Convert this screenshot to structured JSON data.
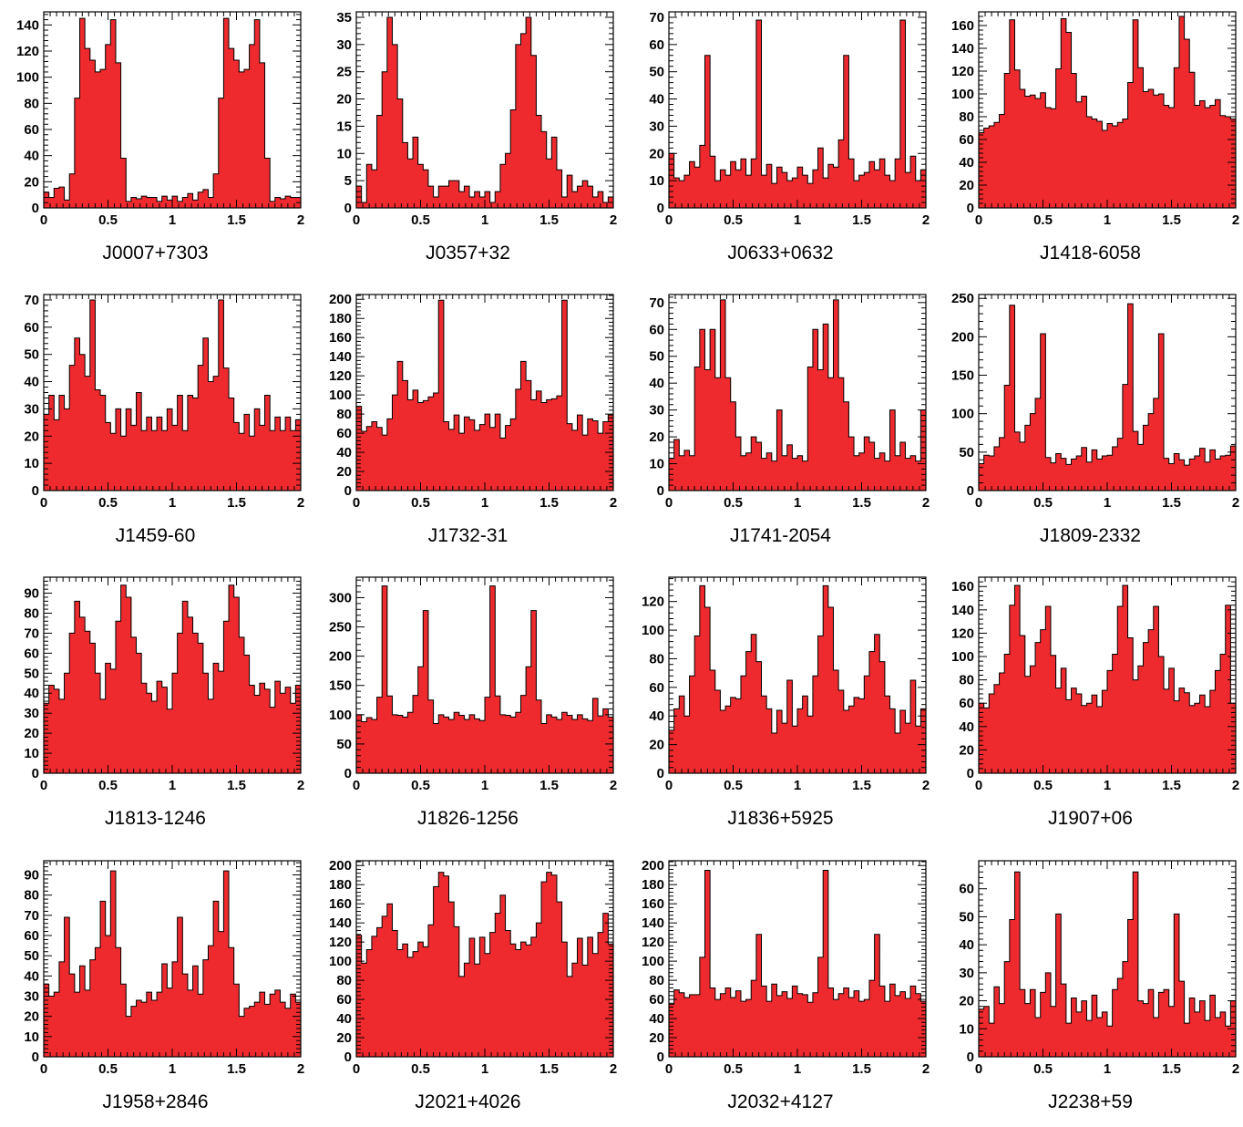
{
  "style": {
    "bar_color": "#ee2a2e",
    "edge_color": "#000000"
  },
  "chart_data": [
    {
      "type": "bar",
      "title": "J0007+7303",
      "xlim": [
        0,
        2
      ],
      "ylim": [
        0,
        150
      ],
      "xticks": [
        "0",
        "0.5",
        "1",
        "1.5",
        "2"
      ],
      "yticks": [
        "0",
        "20",
        "40",
        "60",
        "80",
        "100",
        "120",
        "140"
      ],
      "values": [
        12,
        8,
        15,
        16,
        6,
        26,
        84,
        145,
        122,
        113,
        104,
        106,
        125,
        144,
        111,
        38,
        5,
        8,
        7,
        9,
        8,
        8,
        5,
        9,
        6,
        9,
        5,
        8,
        11,
        6,
        12,
        14,
        8,
        26,
        84,
        145,
        122,
        113,
        104,
        106,
        125,
        144,
        111,
        38,
        5,
        8,
        7,
        9,
        8,
        8
      ]
    },
    {
      "type": "bar",
      "title": "J0357+32",
      "xlim": [
        0,
        2
      ],
      "ylim": [
        0,
        36
      ],
      "xticks": [
        "0",
        "0.5",
        "1",
        "1.5",
        "2"
      ],
      "yticks": [
        "0",
        "5",
        "10",
        "15",
        "20",
        "25",
        "30",
        "35"
      ],
      "values": [
        4,
        1,
        8,
        7,
        17,
        25,
        35,
        30,
        20,
        12,
        9,
        13,
        8,
        7,
        4,
        2,
        4,
        4,
        5,
        5,
        3,
        4,
        2,
        3,
        2,
        3,
        1,
        3,
        8,
        10,
        18,
        30,
        32,
        35,
        28,
        17,
        14,
        9,
        13,
        7,
        2,
        6,
        3,
        4,
        5,
        4,
        2,
        3,
        1,
        2
      ]
    },
    {
      "type": "bar",
      "title": "J0633+0632",
      "xlim": [
        0,
        2
      ],
      "ylim": [
        0,
        72
      ],
      "xticks": [
        "0",
        "0.5",
        "1",
        "1.5",
        "2"
      ],
      "yticks": [
        "0",
        "10",
        "20",
        "30",
        "40",
        "50",
        "60",
        "70"
      ],
      "values": [
        20,
        11,
        10,
        12,
        17,
        15,
        23,
        56,
        19,
        10,
        14,
        12,
        17,
        14,
        18,
        12,
        18,
        69,
        12,
        16,
        9,
        15,
        13,
        10,
        11,
        15,
        12,
        9,
        14,
        22,
        11,
        16,
        15,
        25,
        56,
        18,
        10,
        12,
        13,
        17,
        14,
        18,
        12,
        10,
        18,
        69,
        13,
        19,
        10,
        14
      ]
    },
    {
      "type": "bar",
      "title": "J1418-6058",
      "xlim": [
        0,
        2
      ],
      "ylim": [
        0,
        172
      ],
      "xticks": [
        "0",
        "0.5",
        "1",
        "1.5",
        "2"
      ],
      "yticks": [
        "0",
        "20",
        "40",
        "60",
        "80",
        "100",
        "120",
        "140",
        "160"
      ],
      "values": [
        66,
        70,
        72,
        75,
        82,
        118,
        165,
        121,
        104,
        98,
        99,
        96,
        101,
        88,
        87,
        122,
        166,
        154,
        118,
        93,
        98,
        80,
        78,
        76,
        68,
        74,
        72,
        75,
        78,
        110,
        165,
        123,
        102,
        104,
        99,
        100,
        90,
        88,
        123,
        168,
        148,
        119,
        90,
        94,
        88,
        90,
        95,
        81,
        80,
        78
      ]
    },
    {
      "type": "bar",
      "title": "J1459-60",
      "xlim": [
        0,
        2
      ],
      "ylim": [
        0,
        72
      ],
      "xticks": [
        "0",
        "0.5",
        "1",
        "1.5",
        "2"
      ],
      "yticks": [
        "0",
        "10",
        "20",
        "30",
        "40",
        "50",
        "60",
        "70"
      ],
      "values": [
        28,
        35,
        26,
        35,
        30,
        46,
        56,
        50,
        42,
        70,
        37,
        35,
        25,
        21,
        30,
        20,
        30,
        24,
        36,
        22,
        27,
        22,
        27,
        22,
        30,
        24,
        35,
        22,
        35,
        34,
        46,
        56,
        40,
        42,
        70,
        45,
        34,
        25,
        21,
        28,
        20,
        30,
        24,
        35,
        22,
        27,
        22,
        27,
        22,
        26
      ]
    },
    {
      "type": "bar",
      "title": "J1732-31",
      "xlim": [
        0,
        2
      ],
      "ylim": [
        0,
        205
      ],
      "xticks": [
        "0",
        "0.5",
        "1",
        "1.5",
        "2"
      ],
      "yticks": [
        "0",
        "20",
        "40",
        "60",
        "80",
        "100",
        "120",
        "140",
        "160",
        "180",
        "200"
      ],
      "values": [
        88,
        62,
        67,
        72,
        66,
        58,
        75,
        100,
        135,
        115,
        95,
        105,
        92,
        94,
        98,
        102,
        199,
        72,
        64,
        79,
        60,
        77,
        74,
        63,
        69,
        80,
        66,
        80,
        55,
        68,
        75,
        106,
        135,
        115,
        95,
        104,
        92,
        95,
        96,
        99,
        199,
        70,
        63,
        79,
        58,
        75,
        73,
        60,
        72,
        79
      ]
    },
    {
      "type": "bar",
      "title": "J1741-2054",
      "xlim": [
        0,
        2
      ],
      "ylim": [
        0,
        73
      ],
      "xticks": [
        "0",
        "0.5",
        "1",
        "1.5",
        "2"
      ],
      "yticks": [
        "0",
        "10",
        "20",
        "30",
        "40",
        "50",
        "60",
        "70"
      ],
      "values": [
        12,
        19,
        13,
        15,
        13,
        46,
        60,
        45,
        60,
        42,
        71,
        42,
        33,
        20,
        13,
        14,
        20,
        18,
        12,
        14,
        11,
        30,
        13,
        17,
        12,
        13,
        11,
        46,
        60,
        45,
        62,
        42,
        71,
        42,
        33,
        20,
        13,
        14,
        20,
        18,
        12,
        14,
        11,
        30,
        13,
        18,
        12,
        13,
        11,
        30
      ]
    },
    {
      "type": "bar",
      "title": "J1809-2332",
      "xlim": [
        0,
        2
      ],
      "ylim": [
        0,
        255
      ],
      "xticks": [
        "0",
        "0.5",
        "1",
        "1.5",
        "2"
      ],
      "yticks": [
        "0",
        "50",
        "100",
        "150",
        "200",
        "250"
      ],
      "values": [
        35,
        46,
        45,
        57,
        69,
        137,
        241,
        76,
        63,
        85,
        100,
        120,
        204,
        43,
        36,
        48,
        42,
        34,
        41,
        45,
        56,
        37,
        53,
        41,
        45,
        46,
        57,
        68,
        138,
        243,
        77,
        60,
        85,
        100,
        120,
        204,
        42,
        35,
        48,
        40,
        33,
        41,
        45,
        55,
        37,
        53,
        41,
        45,
        46,
        58
      ]
    },
    {
      "type": "bar",
      "title": "J1813-1246",
      "xlim": [
        0,
        2
      ],
      "ylim": [
        0,
        98
      ],
      "xticks": [
        "0",
        "0.5",
        "1",
        "1.5",
        "2"
      ],
      "yticks": [
        "0",
        "10",
        "20",
        "30",
        "40",
        "50",
        "60",
        "70",
        "80",
        "90"
      ],
      "values": [
        35,
        44,
        42,
        37,
        50,
        70,
        86,
        78,
        71,
        65,
        50,
        37,
        55,
        52,
        76,
        94,
        88,
        68,
        60,
        45,
        40,
        36,
        46,
        43,
        32,
        50,
        70,
        86,
        78,
        70,
        65,
        50,
        37,
        55,
        51,
        76,
        94,
        88,
        68,
        59,
        44,
        39,
        45,
        42,
        33,
        46,
        40,
        43,
        35,
        44
      ]
    },
    {
      "type": "bar",
      "title": "J1826-1256",
      "xlim": [
        0,
        2
      ],
      "ylim": [
        0,
        335
      ],
      "xticks": [
        "0",
        "0.5",
        "1",
        "1.5",
        "2"
      ],
      "yticks": [
        "0",
        "50",
        "100",
        "150",
        "200",
        "250",
        "300"
      ],
      "values": [
        100,
        88,
        95,
        92,
        130,
        320,
        132,
        100,
        99,
        96,
        104,
        133,
        182,
        278,
        125,
        85,
        100,
        96,
        92,
        104,
        99,
        92,
        100,
        93,
        90,
        130,
        320,
        132,
        100,
        99,
        96,
        104,
        133,
        182,
        278,
        125,
        85,
        100,
        96,
        92,
        104,
        99,
        92,
        100,
        93,
        90,
        128,
        98,
        110,
        96
      ]
    },
    {
      "type": "bar",
      "title": "J1836+5925",
      "xlim": [
        0,
        2
      ],
      "ylim": [
        0,
        137
      ],
      "xticks": [
        "0",
        "0.5",
        "1",
        "1.5",
        "2"
      ],
      "yticks": [
        "0",
        "20",
        "40",
        "60",
        "80",
        "100",
        "120"
      ],
      "values": [
        30,
        45,
        54,
        40,
        68,
        96,
        131,
        116,
        72,
        58,
        44,
        47,
        53,
        52,
        68,
        85,
        97,
        78,
        54,
        45,
        28,
        44,
        35,
        65,
        33,
        45,
        54,
        40,
        68,
        96,
        131,
        116,
        72,
        58,
        44,
        47,
        53,
        52,
        68,
        85,
        97,
        78,
        54,
        45,
        28,
        44,
        35,
        65,
        33,
        45
      ]
    },
    {
      "type": "bar",
      "title": "J1907+06",
      "xlim": [
        0,
        2
      ],
      "ylim": [
        0,
        168
      ],
      "xticks": [
        "0",
        "0.5",
        "1",
        "1.5",
        "2"
      ],
      "yticks": [
        "0",
        "20",
        "40",
        "60",
        "80",
        "100",
        "120",
        "140",
        "160"
      ],
      "values": [
        60,
        56,
        68,
        76,
        86,
        102,
        144,
        161,
        118,
        83,
        92,
        112,
        123,
        143,
        101,
        73,
        90,
        63,
        73,
        68,
        58,
        60,
        67,
        57,
        71,
        88,
        102,
        143,
        161,
        116,
        80,
        92,
        112,
        123,
        143,
        100,
        72,
        90,
        62,
        73,
        69,
        58,
        60,
        67,
        57,
        71,
        88,
        102,
        144,
        60
      ]
    },
    {
      "type": "bar",
      "title": "J1958+2846",
      "xlim": [
        0,
        2
      ],
      "ylim": [
        0,
        97
      ],
      "xticks": [
        "0",
        "0.5",
        "1",
        "1.5",
        "2"
      ],
      "yticks": [
        "0",
        "10",
        "20",
        "30",
        "40",
        "50",
        "60",
        "70",
        "80",
        "90"
      ],
      "values": [
        36,
        30,
        32,
        47,
        69,
        41,
        32,
        45,
        33,
        48,
        54,
        77,
        60,
        92,
        54,
        36,
        20,
        25,
        28,
        27,
        32,
        28,
        32,
        46,
        34,
        47,
        69,
        41,
        33,
        45,
        31,
        48,
        55,
        77,
        62,
        92,
        54,
        36,
        20,
        24,
        25,
        27,
        32,
        26,
        31,
        33,
        27,
        24,
        31,
        27
      ]
    },
    {
      "type": "bar",
      "title": "J2021+4026",
      "xlim": [
        0,
        2
      ],
      "ylim": [
        0,
        205
      ],
      "xticks": [
        "0",
        "0.5",
        "1",
        "1.5",
        "2"
      ],
      "yticks": [
        "0",
        "20",
        "40",
        "60",
        "80",
        "100",
        "120",
        "140",
        "160",
        "180",
        "200"
      ],
      "values": [
        127,
        98,
        112,
        126,
        135,
        147,
        160,
        132,
        112,
        118,
        104,
        110,
        120,
        115,
        138,
        178,
        193,
        189,
        162,
        136,
        84,
        98,
        124,
        97,
        125,
        108,
        130,
        150,
        169,
        132,
        118,
        112,
        120,
        117,
        125,
        140,
        183,
        193,
        190,
        162,
        120,
        84,
        98,
        124,
        96,
        125,
        108,
        130,
        150,
        118
      ]
    },
    {
      "type": "bar",
      "title": "J2032+4127",
      "xlim": [
        0,
        2
      ],
      "ylim": [
        0,
        205
      ],
      "xticks": [
        "0",
        "0.5",
        "1",
        "1.5",
        "2"
      ],
      "yticks": [
        "0",
        "20",
        "40",
        "60",
        "80",
        "100",
        "120",
        "140",
        "160",
        "180",
        "200"
      ],
      "values": [
        55,
        70,
        67,
        62,
        65,
        65,
        104,
        195,
        72,
        60,
        66,
        72,
        62,
        69,
        58,
        60,
        80,
        128,
        74,
        58,
        76,
        64,
        68,
        61,
        74,
        66,
        65,
        57,
        67,
        104,
        195,
        72,
        60,
        66,
        72,
        62,
        69,
        58,
        60,
        80,
        128,
        74,
        58,
        76,
        64,
        68,
        61,
        74,
        66,
        58
      ]
    },
    {
      "type": "bar",
      "title": "J2238+59",
      "xlim": [
        0,
        2
      ],
      "ylim": [
        0,
        70
      ],
      "xticks": [
        "0",
        "0.5",
        "1",
        "1.5",
        "2"
      ],
      "yticks": [
        "0",
        "10",
        "20",
        "30",
        "40",
        "50",
        "60"
      ],
      "values": [
        17,
        18,
        12,
        25,
        19,
        34,
        49,
        66,
        24,
        19,
        24,
        14,
        23,
        30,
        18,
        51,
        26,
        12,
        21,
        16,
        20,
        13,
        22,
        14,
        16,
        11,
        24,
        28,
        34,
        49,
        66,
        20,
        19,
        24,
        14,
        23,
        24,
        18,
        51,
        27,
        12,
        21,
        16,
        20,
        13,
        22,
        14,
        16,
        11,
        20
      ]
    }
  ]
}
